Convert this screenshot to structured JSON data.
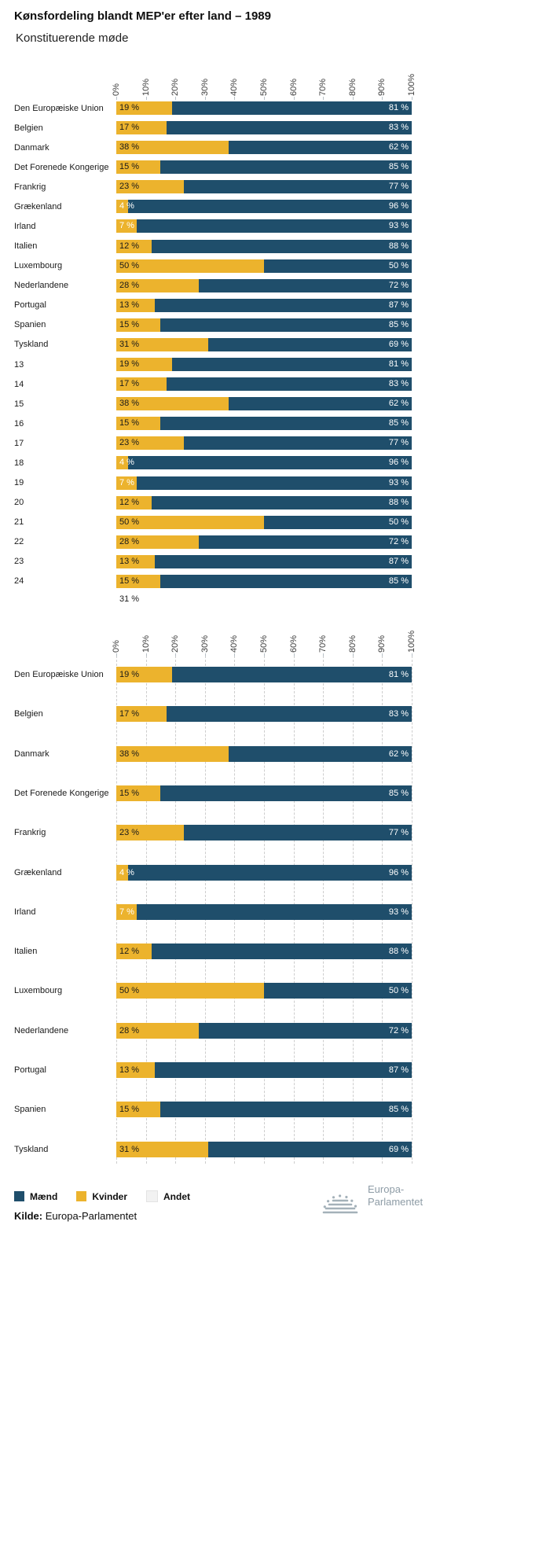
{
  "header": {
    "title": "Kønsfordeling blandt MEP'er efter land – 1989",
    "subtitle": "Konstituerende møde"
  },
  "chart_data": [
    {
      "type": "bar",
      "orientation": "horizontal",
      "stacked": true,
      "xlim": [
        0,
        100
      ],
      "gridlines": false,
      "value_suffix": " %",
      "x_ticks": [
        "0%",
        "10%",
        "20%",
        "30%",
        "40%",
        "50%",
        "60%",
        "70%",
        "80%",
        "90%",
        "100%"
      ],
      "categories": [
        "Den Europæiske Union",
        "Belgien",
        "Danmark",
        "Det Forenede Kongerige",
        "Frankrig",
        "Grækenland",
        "Irland",
        "Italien",
        "Luxembourg",
        "Nederlandene",
        "Portugal",
        "Spanien",
        "Tyskland",
        "13",
        "14",
        "15",
        "16",
        "17",
        "18",
        "19",
        "20",
        "21",
        "22",
        "23",
        "24"
      ],
      "series": [
        {
          "name": "Kvinder",
          "color": "#ecb32d",
          "values": [
            19,
            17,
            38,
            15,
            23,
            4,
            7,
            12,
            50,
            28,
            13,
            15,
            31,
            19,
            17,
            38,
            15,
            23,
            4,
            7,
            12,
            50,
            28,
            13,
            15
          ]
        },
        {
          "name": "Mænd",
          "color": "#1f4e6b",
          "values": [
            81,
            83,
            62,
            85,
            77,
            96,
            93,
            88,
            50,
            72,
            87,
            85,
            69,
            81,
            83,
            62,
            85,
            77,
            96,
            93,
            88,
            50,
            72,
            87,
            85
          ]
        }
      ],
      "overflow_label": "31 %"
    },
    {
      "type": "bar",
      "orientation": "horizontal",
      "stacked": true,
      "xlim": [
        0,
        100
      ],
      "gridlines": true,
      "value_suffix": " %",
      "x_ticks": [
        "0%",
        "10%",
        "20%",
        "30%",
        "40%",
        "50%",
        "60%",
        "70%",
        "80%",
        "90%",
        "100%"
      ],
      "categories": [
        "Den Europæiske Union",
        "Belgien",
        "Danmark",
        "Det Forenede Kongerige",
        "Frankrig",
        "Grækenland",
        "Irland",
        "Italien",
        "Luxembourg",
        "Nederlandene",
        "Portugal",
        "Spanien",
        "Tyskland"
      ],
      "series": [
        {
          "name": "Kvinder",
          "color": "#ecb32d",
          "values": [
            19,
            17,
            38,
            15,
            23,
            4,
            7,
            12,
            50,
            28,
            13,
            15,
            31
          ]
        },
        {
          "name": "Mænd",
          "color": "#1f4e6b",
          "values": [
            81,
            83,
            62,
            85,
            77,
            96,
            93,
            88,
            50,
            72,
            87,
            85,
            69
          ]
        }
      ]
    }
  ],
  "legend": {
    "items": [
      {
        "label": "Mænd",
        "color": "#1f4e6b"
      },
      {
        "label": "Kvinder",
        "color": "#ecb32d"
      },
      {
        "label": "Andet",
        "color": "#f2f2f2"
      }
    ]
  },
  "footer": {
    "source_label": "Kilde:",
    "source_text": "Europa-Parlamentet",
    "logo_line1": "Europa-",
    "logo_line2": "Parlamentet"
  }
}
